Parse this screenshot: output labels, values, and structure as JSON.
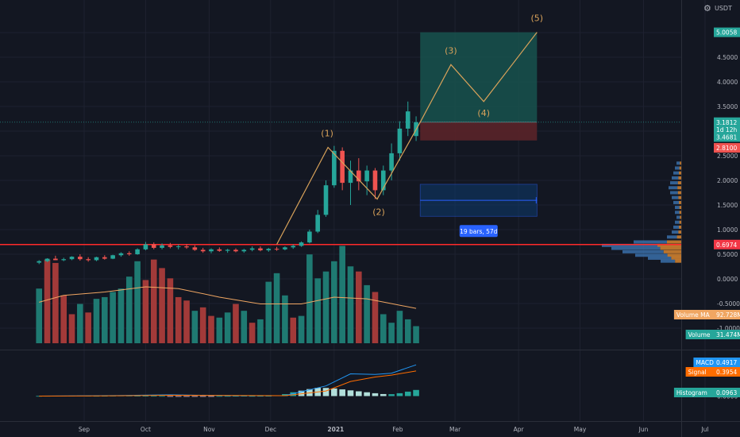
{
  "header": {
    "currency": "USDT",
    "settings_glyph": "⚙"
  },
  "colors": {
    "background": "#131722",
    "grid": "#1e2230",
    "axis_text": "#b2b5be",
    "up": "#26a69a",
    "down": "#ef5350",
    "vol_up": "#1f7a72",
    "vol_down": "#a23a39",
    "wave": "#d8a25a",
    "ma": "#f0a662",
    "macd": "#2196f3",
    "signal": "#ff6d00",
    "support": "#ff2a2a",
    "target_zone": "#18524d",
    "stop_zone": "#5a2329",
    "range_box": "#0d3a6e",
    "range_badge": "#2962ff",
    "vp_up": "#3a6fa8",
    "vp_down": "#d7852f"
  },
  "price_axis": {
    "ticks": [
      "5.0000",
      "4.5000",
      "4.0000",
      "3.5000",
      "3.0000",
      "2.5000",
      "2.0000",
      "1.5000",
      "1.0000",
      "0.5000",
      "0.0000",
      "-0.5000",
      "-1.0000"
    ],
    "badges": [
      {
        "label": "5.0058",
        "value": 5.0058,
        "color": "#26a69a"
      },
      {
        "label": "3.1812",
        "value": 3.1812,
        "color": "#26a69a"
      },
      {
        "label": "1d 12h",
        "value": 3.03,
        "color": "#26a69a"
      },
      {
        "label": "3.4681",
        "value": 2.88,
        "color": "#26a69a"
      },
      {
        "label": "2.8100",
        "value": 2.66,
        "color": "#ef5350"
      },
      {
        "label": "0.6974",
        "value": 0.6974,
        "color": "#f23645"
      }
    ]
  },
  "time_axis": {
    "labels": [
      "Sep",
      "Oct",
      "Nov",
      "Dec",
      "2021",
      "Feb",
      "Mar",
      "Apr",
      "May",
      "Jun",
      "Jul"
    ]
  },
  "waves": [
    {
      "label": "(1)",
      "date": "2020-12-29",
      "price": 2.67
    },
    {
      "label": "(2)",
      "date": "2021-01-22",
      "price": 1.62
    },
    {
      "label": "(3)",
      "date": "2021-02-27",
      "price": 4.35
    },
    {
      "label": "(4)",
      "date": "2021-03-15",
      "price": 3.6
    },
    {
      "label": "(5)",
      "date": "2021-04-10",
      "price": 5.0058
    }
  ],
  "wave_path": [
    {
      "date": "2020-12-04",
      "price": 0.7
    },
    {
      "date": "2020-12-29",
      "price": 2.67
    },
    {
      "date": "2021-01-22",
      "price": 1.62
    },
    {
      "date": "2021-02-12",
      "price": 3.18
    },
    {
      "date": "2021-02-27",
      "price": 4.35
    },
    {
      "date": "2021-03-15",
      "price": 3.6
    },
    {
      "date": "2021-04-10",
      "price": 5.0058
    }
  ],
  "position": {
    "start": "2021-02-12",
    "end": "2021-04-10",
    "entry": 3.1812,
    "target": 5.0058,
    "stop": 2.81
  },
  "date_range": {
    "start": "2021-02-12",
    "end": "2021-04-10",
    "top": 1.92,
    "bottom": 1.27,
    "label": "19 bars, 57d"
  },
  "support_level": 0.6974,
  "volume_legend": [
    {
      "name": "Volume MA",
      "value": "92.728M",
      "color": "#f0a662"
    },
    {
      "name": "Volume",
      "value": "31.474M",
      "color": "#26a69a"
    }
  ],
  "macd_legend": [
    {
      "name": "MACD",
      "value": "0.4917",
      "color": "#2196f3"
    },
    {
      "name": "Signal",
      "value": "0.3954",
      "color": "#ff6d00"
    },
    {
      "name": "Histogram",
      "value": "0.0963",
      "color": "#26a69a"
    }
  ],
  "macd_axis": {
    "ticks": [
      "0.0000"
    ]
  },
  "chart_data": {
    "type": "candlestick",
    "symbol_quote": "USDT",
    "interval": "4d",
    "x_range": [
      "2020-08-10",
      "2021-07-31"
    ],
    "ylim": [
      -1.2,
      5.3
    ],
    "candles": [
      {
        "date": "2020-08-10",
        "open": 0.33,
        "high": 0.38,
        "low": 0.3,
        "close": 0.36
      },
      {
        "date": "2020-08-14",
        "open": 0.36,
        "high": 0.42,
        "low": 0.34,
        "close": 0.41
      },
      {
        "date": "2020-08-18",
        "open": 0.41,
        "high": 0.47,
        "low": 0.38,
        "close": 0.38
      },
      {
        "date": "2020-08-22",
        "open": 0.38,
        "high": 0.43,
        "low": 0.36,
        "close": 0.4
      },
      {
        "date": "2020-08-26",
        "open": 0.4,
        "high": 0.46,
        "low": 0.38,
        "close": 0.45
      },
      {
        "date": "2020-08-30",
        "open": 0.45,
        "high": 0.5,
        "low": 0.37,
        "close": 0.4
      },
      {
        "date": "2020-09-03",
        "open": 0.4,
        "high": 0.44,
        "low": 0.35,
        "close": 0.38
      },
      {
        "date": "2020-09-07",
        "open": 0.38,
        "high": 0.45,
        "low": 0.36,
        "close": 0.44
      },
      {
        "date": "2020-09-11",
        "open": 0.44,
        "high": 0.48,
        "low": 0.39,
        "close": 0.41
      },
      {
        "date": "2020-09-15",
        "open": 0.41,
        "high": 0.49,
        "low": 0.4,
        "close": 0.48
      },
      {
        "date": "2020-09-19",
        "open": 0.48,
        "high": 0.54,
        "low": 0.45,
        "close": 0.52
      },
      {
        "date": "2020-09-23",
        "open": 0.52,
        "high": 0.56,
        "low": 0.47,
        "close": 0.5
      },
      {
        "date": "2020-09-27",
        "open": 0.5,
        "high": 0.62,
        "low": 0.49,
        "close": 0.6
      },
      {
        "date": "2020-10-01",
        "open": 0.6,
        "high": 0.75,
        "low": 0.58,
        "close": 0.7
      },
      {
        "date": "2020-10-05",
        "open": 0.7,
        "high": 0.74,
        "low": 0.6,
        "close": 0.63
      },
      {
        "date": "2020-10-09",
        "open": 0.63,
        "high": 0.72,
        "low": 0.6,
        "close": 0.68
      },
      {
        "date": "2020-10-13",
        "open": 0.68,
        "high": 0.73,
        "low": 0.62,
        "close": 0.65
      },
      {
        "date": "2020-10-17",
        "open": 0.65,
        "high": 0.7,
        "low": 0.6,
        "close": 0.66
      },
      {
        "date": "2020-10-21",
        "open": 0.66,
        "high": 0.71,
        "low": 0.61,
        "close": 0.64
      },
      {
        "date": "2020-10-25",
        "open": 0.64,
        "high": 0.68,
        "low": 0.57,
        "close": 0.59
      },
      {
        "date": "2020-10-29",
        "open": 0.59,
        "high": 0.63,
        "low": 0.53,
        "close": 0.56
      },
      {
        "date": "2020-11-02",
        "open": 0.56,
        "high": 0.62,
        "low": 0.52,
        "close": 0.6
      },
      {
        "date": "2020-11-06",
        "open": 0.6,
        "high": 0.64,
        "low": 0.55,
        "close": 0.57
      },
      {
        "date": "2020-11-10",
        "open": 0.57,
        "high": 0.61,
        "low": 0.53,
        "close": 0.59
      },
      {
        "date": "2020-11-14",
        "open": 0.59,
        "high": 0.62,
        "low": 0.54,
        "close": 0.56
      },
      {
        "date": "2020-11-18",
        "open": 0.56,
        "high": 0.61,
        "low": 0.53,
        "close": 0.59
      },
      {
        "date": "2020-11-22",
        "open": 0.59,
        "high": 0.66,
        "low": 0.56,
        "close": 0.62
      },
      {
        "date": "2020-11-26",
        "open": 0.62,
        "high": 0.66,
        "low": 0.56,
        "close": 0.58
      },
      {
        "date": "2020-11-30",
        "open": 0.58,
        "high": 0.63,
        "low": 0.55,
        "close": 0.61
      },
      {
        "date": "2020-12-04",
        "open": 0.61,
        "high": 0.65,
        "low": 0.57,
        "close": 0.6
      },
      {
        "date": "2020-12-08",
        "open": 0.6,
        "high": 0.66,
        "low": 0.58,
        "close": 0.64
      },
      {
        "date": "2020-12-12",
        "open": 0.64,
        "high": 0.7,
        "low": 0.61,
        "close": 0.67
      },
      {
        "date": "2020-12-16",
        "open": 0.67,
        "high": 0.76,
        "low": 0.65,
        "close": 0.74
      },
      {
        "date": "2020-12-20",
        "open": 0.74,
        "high": 1.0,
        "low": 0.72,
        "close": 0.96
      },
      {
        "date": "2020-12-24",
        "open": 0.96,
        "high": 1.4,
        "low": 0.93,
        "close": 1.3
      },
      {
        "date": "2020-12-28",
        "open": 1.3,
        "high": 2.0,
        "low": 1.26,
        "close": 1.9
      },
      {
        "date": "2021-01-01",
        "open": 1.9,
        "high": 2.7,
        "low": 1.85,
        "close": 2.6
      },
      {
        "date": "2021-01-05",
        "open": 2.6,
        "high": 2.67,
        "low": 1.8,
        "close": 1.95
      },
      {
        "date": "2021-01-09",
        "open": 1.95,
        "high": 2.4,
        "low": 1.5,
        "close": 2.2
      },
      {
        "date": "2021-01-13",
        "open": 2.2,
        "high": 2.45,
        "low": 1.8,
        "close": 1.98
      },
      {
        "date": "2021-01-17",
        "open": 1.98,
        "high": 2.3,
        "low": 1.7,
        "close": 2.2
      },
      {
        "date": "2021-01-21",
        "open": 2.2,
        "high": 2.25,
        "low": 1.62,
        "close": 1.8
      },
      {
        "date": "2021-01-25",
        "open": 1.8,
        "high": 2.3,
        "low": 1.7,
        "close": 2.2
      },
      {
        "date": "2021-01-29",
        "open": 2.2,
        "high": 2.75,
        "low": 2.0,
        "close": 2.55
      },
      {
        "date": "2021-02-02",
        "open": 2.55,
        "high": 3.2,
        "low": 2.4,
        "close": 3.05
      },
      {
        "date": "2021-02-06",
        "open": 3.05,
        "high": 3.6,
        "low": 2.9,
        "close": 3.4
      },
      {
        "date": "2021-02-10",
        "open": 2.9,
        "high": 3.3,
        "low": 2.8,
        "close": 3.18
      }
    ],
    "volume": [
      {
        "date": "2020-08-10",
        "value": 160,
        "dir": "up"
      },
      {
        "date": "2020-08-14",
        "value": 245,
        "dir": "down"
      },
      {
        "date": "2020-08-18",
        "value": 235,
        "dir": "down"
      },
      {
        "date": "2020-08-22",
        "value": 140,
        "dir": "down"
      },
      {
        "date": "2020-08-26",
        "value": 85,
        "dir": "down"
      },
      {
        "date": "2020-08-30",
        "value": 115,
        "dir": "up"
      },
      {
        "date": "2020-09-03",
        "value": 90,
        "dir": "down"
      },
      {
        "date": "2020-09-07",
        "value": 130,
        "dir": "up"
      },
      {
        "date": "2020-09-11",
        "value": 135,
        "dir": "up"
      },
      {
        "date": "2020-09-15",
        "value": 150,
        "dir": "up"
      },
      {
        "date": "2020-09-19",
        "value": 160,
        "dir": "up"
      },
      {
        "date": "2020-09-23",
        "value": 195,
        "dir": "up"
      },
      {
        "date": "2020-09-27",
        "value": 240,
        "dir": "up"
      },
      {
        "date": "2020-10-01",
        "value": 185,
        "dir": "down"
      },
      {
        "date": "2020-10-05",
        "value": 245,
        "dir": "down"
      },
      {
        "date": "2020-10-09",
        "value": 220,
        "dir": "down"
      },
      {
        "date": "2020-10-13",
        "value": 190,
        "dir": "down"
      },
      {
        "date": "2020-10-17",
        "value": 135,
        "dir": "down"
      },
      {
        "date": "2020-10-21",
        "value": 125,
        "dir": "down"
      },
      {
        "date": "2020-10-25",
        "value": 95,
        "dir": "up"
      },
      {
        "date": "2020-10-29",
        "value": 105,
        "dir": "down"
      },
      {
        "date": "2020-11-02",
        "value": 80,
        "dir": "down"
      },
      {
        "date": "2020-11-06",
        "value": 75,
        "dir": "up"
      },
      {
        "date": "2020-11-10",
        "value": 90,
        "dir": "up"
      },
      {
        "date": "2020-11-14",
        "value": 115,
        "dir": "down"
      },
      {
        "date": "2020-11-18",
        "value": 95,
        "dir": "up"
      },
      {
        "date": "2020-11-22",
        "value": 60,
        "dir": "down"
      },
      {
        "date": "2020-11-26",
        "value": 70,
        "dir": "up"
      },
      {
        "date": "2020-11-30",
        "value": 180,
        "dir": "up"
      },
      {
        "date": "2020-12-04",
        "value": 205,
        "dir": "up"
      },
      {
        "date": "2020-12-08",
        "value": 140,
        "dir": "up"
      },
      {
        "date": "2020-12-12",
        "value": 75,
        "dir": "down"
      },
      {
        "date": "2020-12-16",
        "value": 80,
        "dir": "up"
      },
      {
        "date": "2020-12-20",
        "value": 260,
        "dir": "up"
      },
      {
        "date": "2020-12-24",
        "value": 190,
        "dir": "up"
      },
      {
        "date": "2020-12-28",
        "value": 210,
        "dir": "up"
      },
      {
        "date": "2021-01-01",
        "value": 240,
        "dir": "up"
      },
      {
        "date": "2021-01-05",
        "value": 285,
        "dir": "up"
      },
      {
        "date": "2021-01-09",
        "value": 225,
        "dir": "up"
      },
      {
        "date": "2021-01-13",
        "value": 210,
        "dir": "down"
      },
      {
        "date": "2021-01-17",
        "value": 170,
        "dir": "up"
      },
      {
        "date": "2021-01-21",
        "value": 150,
        "dir": "down"
      },
      {
        "date": "2021-01-25",
        "value": 85,
        "dir": "up"
      },
      {
        "date": "2021-01-29",
        "value": 60,
        "dir": "up"
      },
      {
        "date": "2021-02-02",
        "value": 95,
        "dir": "up"
      },
      {
        "date": "2021-02-06",
        "value": 70,
        "dir": "up"
      },
      {
        "date": "2021-02-10",
        "value": 50,
        "dir": "up"
      }
    ],
    "volume_ma": [
      {
        "date": "2020-08-10",
        "value": 120
      },
      {
        "date": "2020-08-22",
        "value": 140
      },
      {
        "date": "2020-09-11",
        "value": 150
      },
      {
        "date": "2020-10-01",
        "value": 165
      },
      {
        "date": "2020-10-17",
        "value": 160
      },
      {
        "date": "2020-11-06",
        "value": 135
      },
      {
        "date": "2020-11-26",
        "value": 115
      },
      {
        "date": "2020-12-16",
        "value": 115
      },
      {
        "date": "2021-01-01",
        "value": 135
      },
      {
        "date": "2021-01-17",
        "value": 130
      },
      {
        "date": "2021-02-10",
        "value": 102
      }
    ],
    "macd": [
      {
        "date": "2020-08-10",
        "macd": 0.0,
        "signal": 0.0
      },
      {
        "date": "2020-09-15",
        "macd": 0.008,
        "signal": 0.004
      },
      {
        "date": "2020-10-13",
        "macd": 0.02,
        "signal": 0.012
      },
      {
        "date": "2020-11-14",
        "macd": 0.006,
        "signal": 0.01
      },
      {
        "date": "2020-12-08",
        "macd": 0.008,
        "signal": 0.006
      },
      {
        "date": "2020-12-28",
        "macd": 0.16,
        "signal": 0.08
      },
      {
        "date": "2021-01-09",
        "macd": 0.35,
        "signal": 0.23
      },
      {
        "date": "2021-01-21",
        "macd": 0.34,
        "signal": 0.3
      },
      {
        "date": "2021-01-29",
        "macd": 0.36,
        "signal": 0.33
      },
      {
        "date": "2021-02-10",
        "macd": 0.4917,
        "signal": 0.3954
      }
    ],
    "histogram": [
      0.002,
      0.003,
      0.004,
      0.006,
      0.007,
      0.008,
      0.005,
      0.003,
      0.004,
      0.006,
      0.008,
      0.007,
      0.005,
      0.004,
      0.003,
      0.002,
      -0.002,
      -0.003,
      -0.004,
      -0.003,
      -0.002,
      -0.001,
      0.001,
      0.002,
      0.003,
      0.004,
      0.002,
      0.003,
      0.004,
      0.012,
      0.03,
      0.06,
      0.085,
      0.11,
      0.13,
      0.128,
      0.12,
      0.105,
      0.09,
      0.075,
      0.06,
      0.045,
      0.032,
      0.03,
      0.045,
      0.07,
      0.0963
    ]
  }
}
